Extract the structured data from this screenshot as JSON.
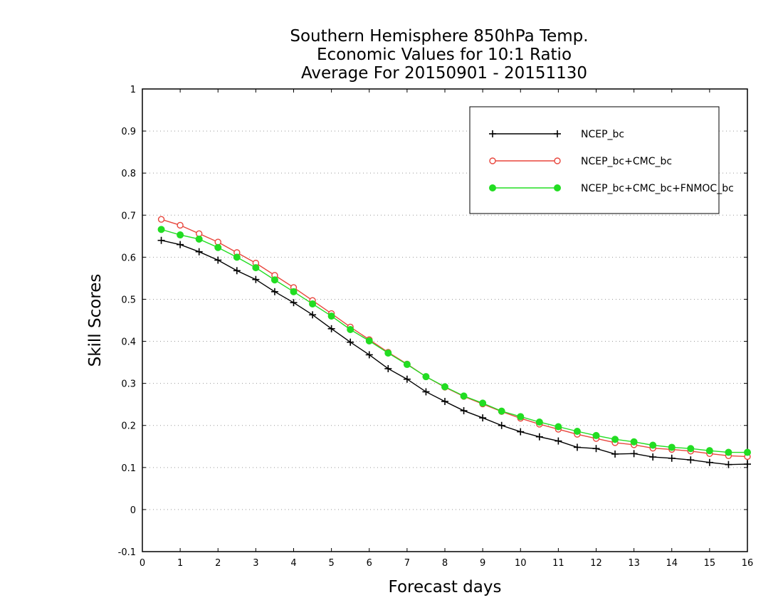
{
  "chart_data": {
    "type": "line",
    "title": [
      "Southern Hemisphere 850hPa Temp.",
      "Economic Values for 10:1 Ratio",
      "Average For 20150901 - 20151130"
    ],
    "xlabel": "Forecast days",
    "ylabel": "Skill Scores",
    "xlim": [
      0,
      16
    ],
    "ylim": [
      -0.1,
      1
    ],
    "xticks": [
      0,
      1,
      2,
      3,
      4,
      5,
      6,
      7,
      8,
      9,
      10,
      11,
      12,
      13,
      14,
      15,
      16
    ],
    "yticks": [
      -0.1,
      0,
      0.1,
      0.2,
      0.3,
      0.4,
      0.5,
      0.6,
      0.7,
      0.8,
      0.9,
      1
    ],
    "ytick_labels": [
      "-0.1",
      "0",
      "0.1",
      "0.2",
      "0.3",
      "0.4",
      "0.5",
      "0.6",
      "0.7",
      "0.8",
      "0.9",
      "1"
    ],
    "grid": "horizontal dotted",
    "legend_position": "top-right",
    "x": [
      0.5,
      1,
      1.5,
      2,
      2.5,
      3,
      3.5,
      4,
      4.5,
      5,
      5.5,
      6,
      6.5,
      7,
      7.5,
      8,
      8.5,
      9,
      9.5,
      10,
      10.5,
      11,
      11.5,
      12,
      12.5,
      13,
      13.5,
      14,
      14.5,
      15,
      15.5,
      16
    ],
    "series": [
      {
        "name": "NCEP_bc",
        "color": "#000000",
        "marker": "plus",
        "values": [
          0.64,
          0.63,
          0.613,
          0.593,
          0.568,
          0.547,
          0.518,
          0.492,
          0.463,
          0.43,
          0.398,
          0.368,
          0.335,
          0.31,
          0.28,
          0.257,
          0.235,
          0.218,
          0.2,
          0.185,
          0.173,
          0.163,
          0.148,
          0.145,
          0.132,
          0.133,
          0.125,
          0.122,
          0.118,
          0.112,
          0.107,
          0.108
        ]
      },
      {
        "name": "NCEP_bc+CMC_bc",
        "color": "#e8453c",
        "marker": "open-circle",
        "values": [
          0.69,
          0.676,
          0.656,
          0.636,
          0.611,
          0.586,
          0.557,
          0.528,
          0.497,
          0.466,
          0.434,
          0.404,
          0.374,
          0.346,
          0.316,
          0.291,
          0.269,
          0.251,
          0.233,
          0.217,
          0.203,
          0.191,
          0.179,
          0.169,
          0.159,
          0.154,
          0.146,
          0.143,
          0.139,
          0.133,
          0.128,
          0.126
        ]
      },
      {
        "name": "NCEP_bc+CMC_bc+FNMOC_bc",
        "color": "#22dd22",
        "marker": "filled-circle",
        "values": [
          0.666,
          0.653,
          0.643,
          0.623,
          0.6,
          0.575,
          0.546,
          0.518,
          0.489,
          0.46,
          0.428,
          0.401,
          0.372,
          0.345,
          0.316,
          0.292,
          0.27,
          0.253,
          0.234,
          0.221,
          0.208,
          0.197,
          0.186,
          0.176,
          0.167,
          0.161,
          0.153,
          0.148,
          0.145,
          0.14,
          0.136,
          0.136
        ]
      }
    ]
  }
}
